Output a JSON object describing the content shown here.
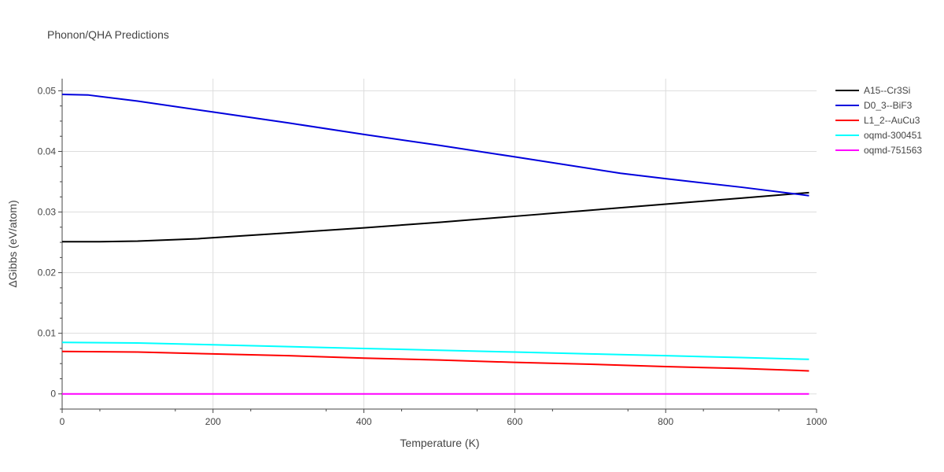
{
  "chart_data": {
    "type": "line",
    "title": "Phonon/QHA Predictions",
    "xlabel": "Temperature (K)",
    "ylabel": "ΔGibbs (eV/atom)",
    "xlim": [
      0,
      1000
    ],
    "ylim": [
      -0.0025,
      0.052
    ],
    "xticks": [
      0,
      200,
      400,
      600,
      800,
      1000
    ],
    "xtick_labels": [
      "0",
      "200",
      "400",
      "600",
      "800",
      "1000"
    ],
    "yticks": [
      0,
      0.01,
      0.02,
      0.03,
      0.04,
      0.05
    ],
    "ytick_labels": [
      "0",
      "0.01",
      "0.02",
      "0.03",
      "0.04",
      "0.05"
    ],
    "grid": true,
    "legend_position": "top-right",
    "series": [
      {
        "name": "A15--Cr3Si",
        "color": "#000000",
        "x": [
          0,
          50,
          100,
          180,
          280,
          400,
          500,
          600,
          700,
          800,
          900,
          990
        ],
        "y": [
          0.0251,
          0.0251,
          0.0252,
          0.0256,
          0.0264,
          0.0274,
          0.0283,
          0.0293,
          0.0303,
          0.0313,
          0.0323,
          0.0332
        ]
      },
      {
        "name": "D0_3--BiF3",
        "color": "#0000dd",
        "x": [
          0,
          35,
          100,
          200,
          300,
          400,
          500,
          600,
          740,
          800,
          900,
          990
        ],
        "y": [
          0.0494,
          0.0493,
          0.0483,
          0.0465,
          0.0447,
          0.0428,
          0.041,
          0.0391,
          0.0364,
          0.0355,
          0.0341,
          0.0327
        ]
      },
      {
        "name": "L1_2--AuCu3",
        "color": "#ff0000",
        "x": [
          0,
          100,
          200,
          300,
          400,
          500,
          600,
          700,
          800,
          900,
          990
        ],
        "y": [
          0.007,
          0.0069,
          0.0066,
          0.0063,
          0.0059,
          0.0056,
          0.0052,
          0.0049,
          0.0045,
          0.0042,
          0.0038
        ]
      },
      {
        "name": "oqmd-300451",
        "color": "#00ffff",
        "x": [
          0,
          100,
          200,
          300,
          400,
          500,
          600,
          700,
          800,
          900,
          990
        ],
        "y": [
          0.0085,
          0.0084,
          0.0081,
          0.0078,
          0.0075,
          0.0072,
          0.0069,
          0.0066,
          0.0063,
          0.006,
          0.0057
        ]
      },
      {
        "name": "oqmd-751563",
        "color": "#ff00ff",
        "x": [
          0,
          990
        ],
        "y": [
          0.0,
          0.0
        ]
      }
    ]
  }
}
